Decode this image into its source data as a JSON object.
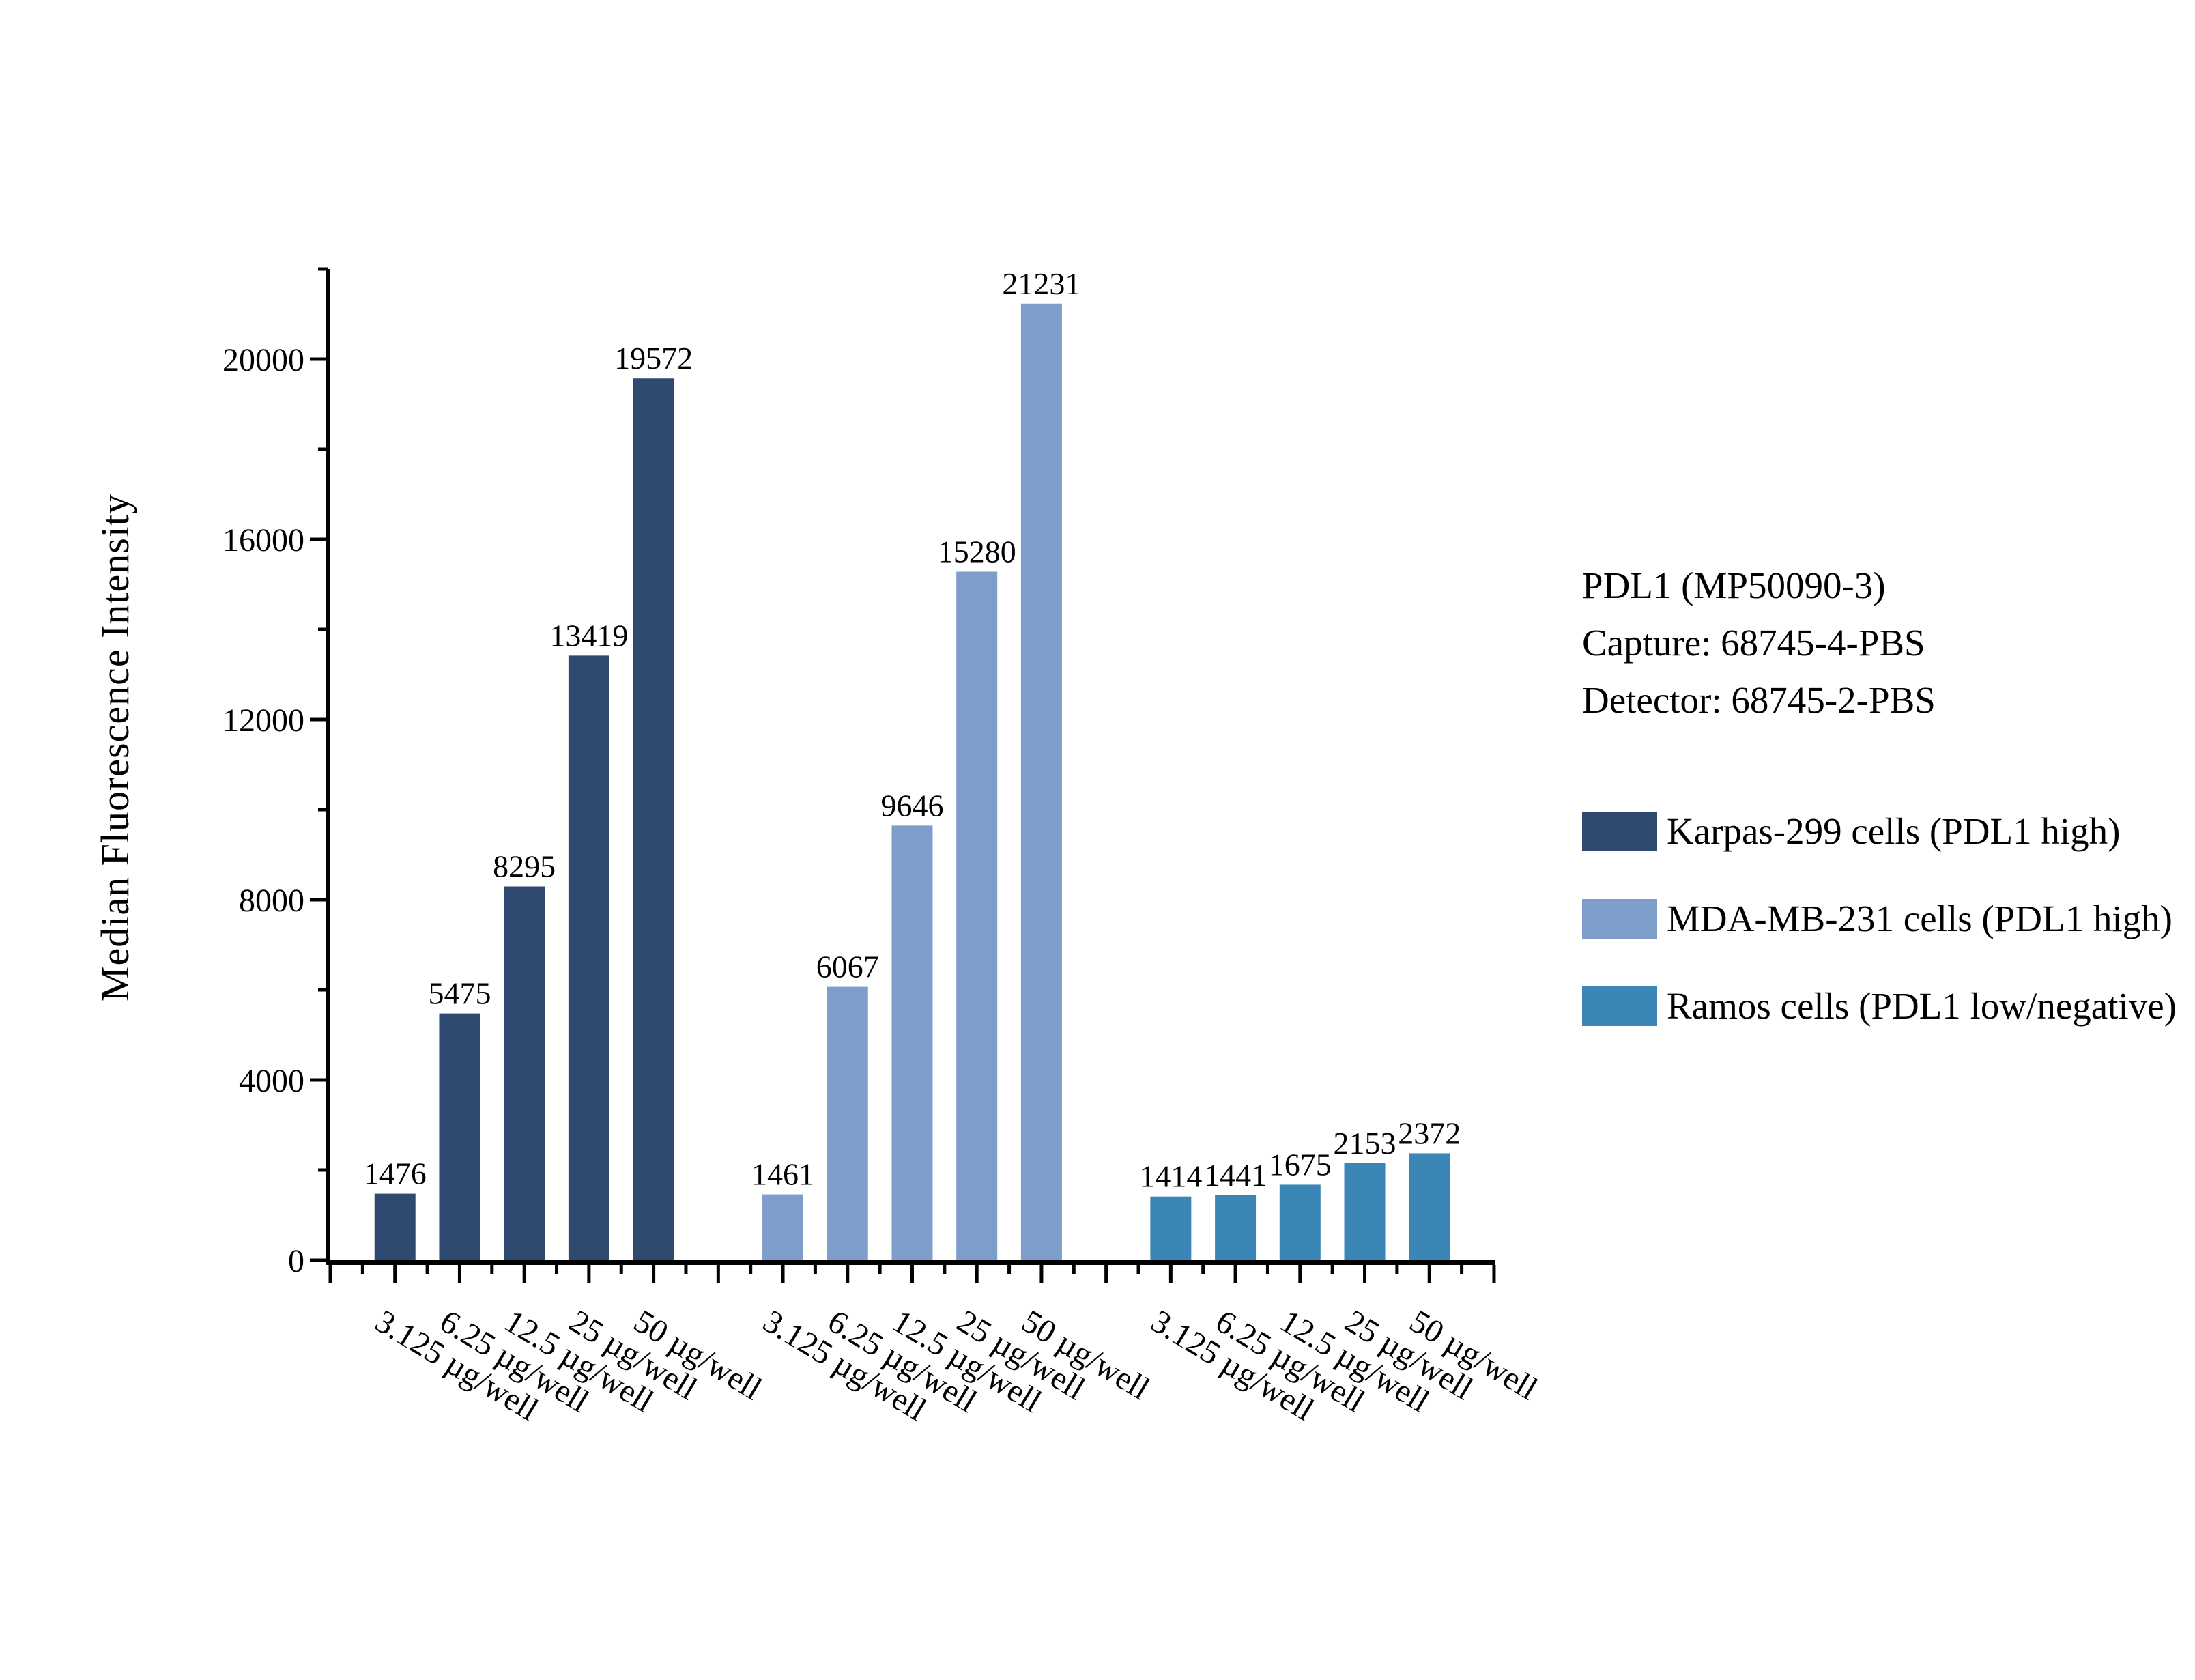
{
  "chart_data": {
    "type": "bar",
    "title": "",
    "xlabel": "",
    "ylabel": "Median Fluorescence Intensity",
    "ylim": [
      0,
      22000
    ],
    "y_major_ticks": [
      0,
      4000,
      8000,
      12000,
      16000,
      20000
    ],
    "y_minor_step": 2000,
    "grid": false,
    "legend_position": "right",
    "bar_value_labels": true,
    "categories": [
      "3.125 µg/well",
      "6.25 µg/well",
      "12.5 µg/well",
      "25 µg/well",
      "50 µg/well"
    ],
    "series": [
      {
        "name": "Karpas-299 cells (PDL1 high)",
        "color": "#2F4A71",
        "values": [
          1476,
          5475,
          8295,
          13419,
          19572
        ]
      },
      {
        "name": "MDA-MB-231 cells (PDL1 high)",
        "color": "#7F9DCB",
        "values": [
          1461,
          6067,
          9646,
          15280,
          21231
        ]
      },
      {
        "name": "Ramos cells (PDL1 low/negative)",
        "color": "#3A86B6",
        "values": [
          1414,
          1441,
          1675,
          2153,
          2372
        ]
      }
    ]
  },
  "annotation": {
    "lines": [
      "PDL1 (MP50090-3)",
      "Capture: 68745-4-PBS",
      "Detector: 68745-2-PBS"
    ]
  },
  "colors": {
    "axis": "#000000",
    "text": "#000000",
    "background": "#ffffff"
  }
}
